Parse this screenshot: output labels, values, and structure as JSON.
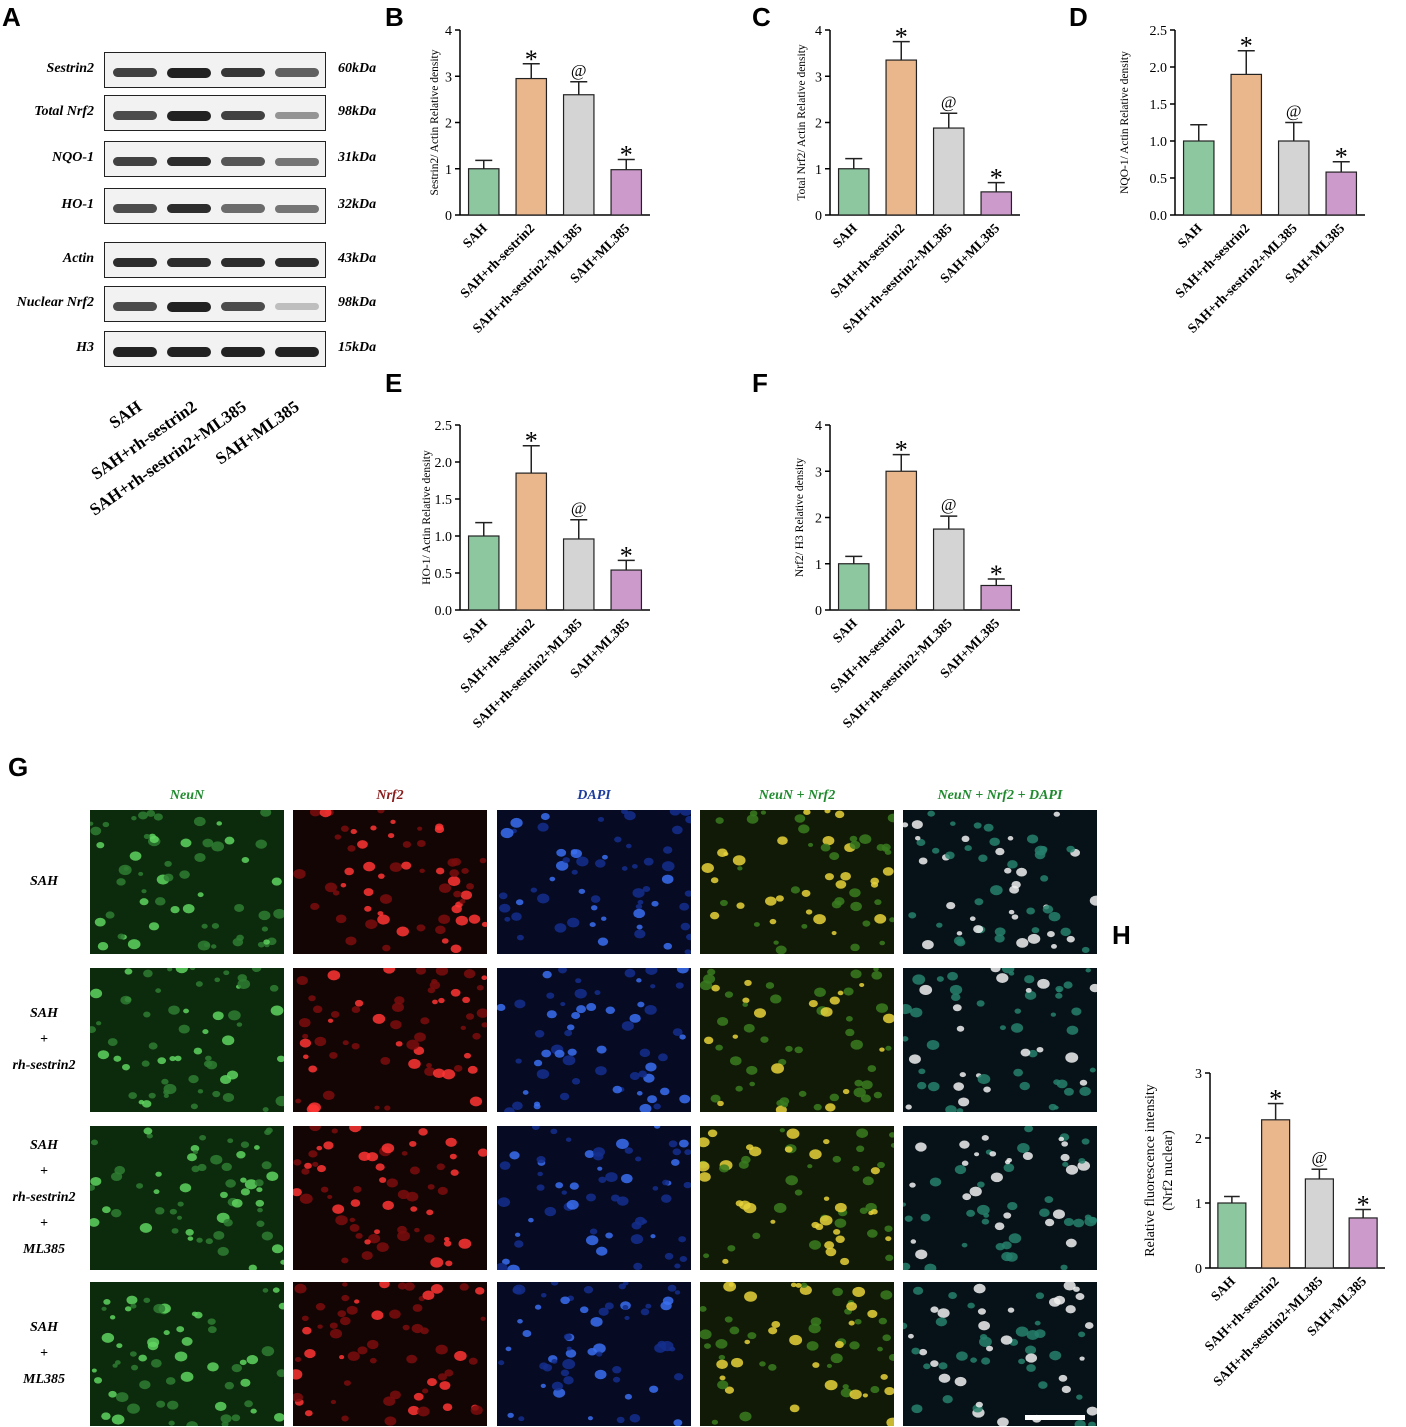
{
  "panels": {
    "A": "A",
    "B": "B",
    "C": "C",
    "D": "D",
    "E": "E",
    "F": "F",
    "G": "G",
    "H": "H"
  },
  "western_blot": {
    "rows": [
      {
        "protein": "Sestrin2",
        "size": "60kDa",
        "bands": [
          0.85,
          1.0,
          0.9,
          0.7
        ]
      },
      {
        "protein": "Total Nrf2",
        "size": "98kDa",
        "bands": [
          0.8,
          1.0,
          0.85,
          0.45
        ]
      },
      {
        "protein": "NQO-1",
        "size": "31kDa",
        "bands": [
          0.85,
          0.95,
          0.75,
          0.6
        ]
      },
      {
        "protein": "HO-1",
        "size": "32kDa",
        "bands": [
          0.8,
          0.95,
          0.65,
          0.6
        ]
      },
      {
        "protein": "Actin",
        "size": "43kDa",
        "bands": [
          0.95,
          0.95,
          0.95,
          0.95
        ]
      },
      {
        "protein": "Nuclear Nrf2",
        "size": "98kDa",
        "bands": [
          0.8,
          1.0,
          0.8,
          0.25
        ]
      },
      {
        "protein": "H3",
        "size": "15kDa",
        "bands": [
          1.0,
          1.0,
          1.0,
          1.0
        ]
      }
    ],
    "groups": [
      "SAH",
      "SAH+rh-sestrin2",
      "SAH+rh-sestrin2+ML385",
      "SAH+ML385"
    ]
  },
  "chart_data": [
    {
      "id": "B",
      "type": "bar",
      "categories": [
        "SAH",
        "SAH+rh-sestrin2",
        "SAH+rh-sestrin2+ML385",
        "SAH+ML385"
      ],
      "values": [
        1.0,
        2.95,
        2.6,
        0.98
      ],
      "errors": [
        0.18,
        0.32,
        0.28,
        0.22
      ],
      "annotations": [
        "",
        "*",
        "@",
        "*"
      ],
      "colors": [
        "#8cc7a0",
        "#eab68b",
        "#d4d4d4",
        "#cc9bcc"
      ],
      "ylabel": "Sestrin2/ Actin Relative density",
      "ylim": [
        0,
        4
      ],
      "yticks": [
        "0",
        "1",
        "2",
        "3",
        "4"
      ]
    },
    {
      "id": "C",
      "type": "bar",
      "categories": [
        "SAH",
        "SAH+rh-sestrin2",
        "SAH+rh-sestrin2+ML385",
        "SAH+ML385"
      ],
      "values": [
        1.0,
        3.35,
        1.88,
        0.5
      ],
      "errors": [
        0.22,
        0.4,
        0.32,
        0.2
      ],
      "annotations": [
        "",
        "*",
        "@",
        "*"
      ],
      "colors": [
        "#8cc7a0",
        "#eab68b",
        "#d4d4d4",
        "#cc9bcc"
      ],
      "ylabel": "Total Nrf2/ Actin Relative density",
      "ylim": [
        0,
        4
      ],
      "yticks": [
        "0",
        "1",
        "2",
        "3",
        "4"
      ]
    },
    {
      "id": "D",
      "type": "bar",
      "categories": [
        "SAH",
        "SAH+rh-sestrin2",
        "SAH+rh-sestrin2+ML385",
        "SAH+ML385"
      ],
      "values": [
        1.0,
        1.9,
        1.0,
        0.58
      ],
      "errors": [
        0.22,
        0.32,
        0.25,
        0.14
      ],
      "annotations": [
        "",
        "*",
        "@",
        "*"
      ],
      "colors": [
        "#8cc7a0",
        "#eab68b",
        "#d4d4d4",
        "#cc9bcc"
      ],
      "ylabel": "NQO-1/ Actin Relative density",
      "ylim": [
        0,
        2.5
      ],
      "yticks": [
        "0.0",
        "0.5",
        "1.0",
        "1.5",
        "2.0",
        "2.5"
      ]
    },
    {
      "id": "E",
      "type": "bar",
      "categories": [
        "SAH",
        "SAH+rh-sestrin2",
        "SAH+rh-sestrin2+ML385",
        "SAH+ML385"
      ],
      "values": [
        1.0,
        1.85,
        0.96,
        0.54
      ],
      "errors": [
        0.18,
        0.37,
        0.26,
        0.13
      ],
      "annotations": [
        "",
        "*",
        "@",
        "*"
      ],
      "colors": [
        "#8cc7a0",
        "#eab68b",
        "#d4d4d4",
        "#cc9bcc"
      ],
      "ylabel": "HO-1/ Actin Relative density",
      "ylim": [
        0,
        2.5
      ],
      "yticks": [
        "0.0",
        "0.5",
        "1.0",
        "1.5",
        "2.0",
        "2.5"
      ]
    },
    {
      "id": "F",
      "type": "bar",
      "categories": [
        "SAH",
        "SAH+rh-sestrin2",
        "SAH+rh-sestrin2+ML385",
        "SAH+ML385"
      ],
      "values": [
        1.0,
        3.0,
        1.75,
        0.53
      ],
      "errors": [
        0.16,
        0.36,
        0.28,
        0.14
      ],
      "annotations": [
        "",
        "*",
        "@",
        "*"
      ],
      "colors": [
        "#8cc7a0",
        "#eab68b",
        "#d4d4d4",
        "#cc9bcc"
      ],
      "ylabel": "Nrf2/ H3 Relative density",
      "ylim": [
        0,
        4
      ],
      "yticks": [
        "0",
        "1",
        "2",
        "3",
        "4"
      ]
    },
    {
      "id": "H",
      "type": "bar",
      "categories": [
        "SAH",
        "SAH+rh-sestrin2",
        "SAH+rh-sestrin2+ML385",
        "SAH+ML385"
      ],
      "values": [
        1.0,
        2.28,
        1.37,
        0.77
      ],
      "errors": [
        0.1,
        0.25,
        0.15,
        0.13
      ],
      "annotations": [
        "",
        "*",
        "@",
        "*"
      ],
      "colors": [
        "#8cc7a0",
        "#eab68b",
        "#d4d4d4",
        "#cc9bcc"
      ],
      "ylabel": "Relative fluorescence intensity",
      "ylabel2": "(Nrf2 nuclear)",
      "ylim": [
        0,
        3
      ],
      "yticks": [
        "0",
        "1",
        "2",
        "3"
      ]
    }
  ],
  "immunofluorescence": {
    "columns": [
      {
        "label": "NeuN",
        "color": "#1f8a2e"
      },
      {
        "label": "Nrf2",
        "color": "#8b1a1a"
      },
      {
        "label": "DAPI",
        "color": "#1b3c9e"
      },
      {
        "label": "NeuN + Nrf2",
        "color": "#1f8a2e"
      },
      {
        "label": "NeuN + Nrf2 + DAPI",
        "color": "#1f8a2e"
      }
    ],
    "rows": [
      {
        "lines": [
          "SAH"
        ]
      },
      {
        "lines": [
          "SAH",
          "+",
          "rh-sestrin2"
        ]
      },
      {
        "lines": [
          "SAH",
          "+",
          "rh-sestrin2",
          "+",
          "ML385"
        ]
      },
      {
        "lines": [
          "SAH",
          "+",
          "ML385"
        ]
      }
    ]
  }
}
